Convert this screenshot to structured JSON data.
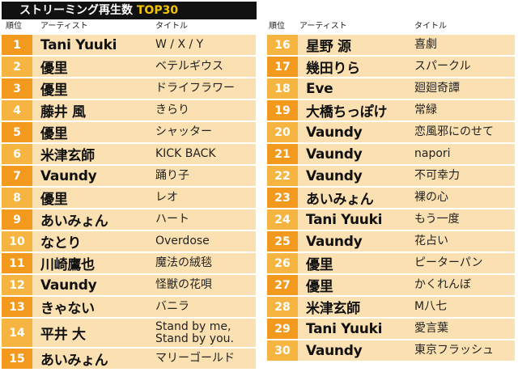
{
  "title": {
    "main": "ストリーミング再生数 ",
    "accent": "TOP30"
  },
  "headers": {
    "rank": "順位",
    "artist": "アーティスト",
    "song": "タイトル"
  },
  "colors": {
    "rank_odd": "#f39a1e",
    "rank_even": "#f6b540",
    "row_bg": "#fbe0b2",
    "title_bg": "#111111",
    "title_accent": "#f5c400"
  },
  "left": [
    {
      "rank": "1",
      "artist": "Tani Yuuki",
      "song": "W / X / Y"
    },
    {
      "rank": "2",
      "artist": "優里",
      "song": "ベテルギウス"
    },
    {
      "rank": "3",
      "artist": "優里",
      "song": "ドライフラワー"
    },
    {
      "rank": "4",
      "artist": "藤井 風",
      "song": "きらり"
    },
    {
      "rank": "5",
      "artist": "優里",
      "song": "シャッター"
    },
    {
      "rank": "6",
      "artist": "米津玄師",
      "song": "KICK BACK"
    },
    {
      "rank": "7",
      "artist": "Vaundy",
      "song": "踊り子"
    },
    {
      "rank": "8",
      "artist": "優里",
      "song": "レオ"
    },
    {
      "rank": "9",
      "artist": "あいみょん",
      "song": "ハート"
    },
    {
      "rank": "10",
      "artist": "なとり",
      "song": "Overdose"
    },
    {
      "rank": "11",
      "artist": "川崎鷹也",
      "song": "魔法の絨毯"
    },
    {
      "rank": "12",
      "artist": "Vaundy",
      "song": "怪獣の花唄"
    },
    {
      "rank": "13",
      "artist": "きゃない",
      "song": "バニラ"
    },
    {
      "rank": "14",
      "artist": "平井 大",
      "song": "Stand by me,\nStand by you."
    },
    {
      "rank": "15",
      "artist": "あいみょん",
      "song": "マリーゴールド"
    }
  ],
  "right": [
    {
      "rank": "16",
      "artist": "星野 源",
      "song": "喜劇"
    },
    {
      "rank": "17",
      "artist": "幾田りら",
      "song": "スパークル"
    },
    {
      "rank": "18",
      "artist": "Eve",
      "song": "廻廻奇譚"
    },
    {
      "rank": "19",
      "artist": "大橋ちっぽけ",
      "song": "常緑"
    },
    {
      "rank": "20",
      "artist": "Vaundy",
      "song": "恋風邪にのせて"
    },
    {
      "rank": "21",
      "artist": "Vaundy",
      "song": "napori"
    },
    {
      "rank": "22",
      "artist": "Vaundy",
      "song": "不可幸力"
    },
    {
      "rank": "23",
      "artist": "あいみょん",
      "song": "裸の心"
    },
    {
      "rank": "24",
      "artist": "Tani Yuuki",
      "song": "もう一度"
    },
    {
      "rank": "25",
      "artist": "Vaundy",
      "song": "花占い"
    },
    {
      "rank": "26",
      "artist": "優里",
      "song": "ピーターパン"
    },
    {
      "rank": "27",
      "artist": "優里",
      "song": "かくれんぼ"
    },
    {
      "rank": "28",
      "artist": "米津玄師",
      "song": "M八七"
    },
    {
      "rank": "29",
      "artist": "Tani Yuuki",
      "song": "愛言葉"
    },
    {
      "rank": "30",
      "artist": "Vaundy",
      "song": "東京フラッシュ"
    }
  ]
}
